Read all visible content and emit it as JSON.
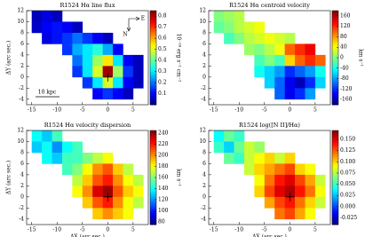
{
  "chart_data": [
    {
      "type": "heatmap",
      "title": "R1524 Hα line flux",
      "colormap": "jet",
      "ylabel": "ΔY (arc sec.)",
      "colorbar_label": "10⁻¹⁶ erg s⁻¹ cm⁻²",
      "x_centers": [
        -14,
        -12,
        -10,
        -8,
        -6,
        -4,
        -2,
        0,
        2,
        4,
        6
      ],
      "y_centers": [
        11,
        9,
        7,
        5,
        3,
        1,
        -1,
        -3
      ],
      "values": [
        [
          0.05,
          0.08,
          0.05,
          null,
          null,
          null,
          null,
          null,
          null,
          null,
          null
        ],
        [
          0.06,
          0.1,
          0.12,
          0.1,
          0.05,
          null,
          null,
          null,
          null,
          null,
          null
        ],
        [
          null,
          0.08,
          0.12,
          0.15,
          0.2,
          0.15,
          0.1,
          0.05,
          null,
          null,
          null
        ],
        [
          null,
          null,
          null,
          0.15,
          0.25,
          0.3,
          0.35,
          0.25,
          0.1,
          null,
          null
        ],
        [
          null,
          null,
          null,
          null,
          0.2,
          0.3,
          0.45,
          0.55,
          0.3,
          0.1,
          0.05
        ],
        [
          null,
          null,
          null,
          null,
          0.15,
          0.3,
          0.5,
          0.82,
          0.45,
          0.15,
          0.05
        ],
        [
          null,
          null,
          null,
          null,
          null,
          0.15,
          0.3,
          0.5,
          0.3,
          0.1,
          0.05
        ],
        [
          null,
          null,
          null,
          null,
          null,
          null,
          0.1,
          0.15,
          0.1,
          0.05,
          null
        ]
      ],
      "clim": [
        0,
        0.85
      ],
      "cticks": [
        0.1,
        0.2,
        0.3,
        0.4,
        0.5,
        0.6,
        0.7,
        0.8
      ],
      "xlim": [
        -16,
        8
      ],
      "ylim": [
        -5,
        12
      ],
      "xticks": [
        -15,
        -10,
        -5,
        0,
        5
      ],
      "yticks": [
        -4,
        -2,
        0,
        2,
        4,
        6,
        8,
        10,
        12
      ],
      "center_marker": {
        "x": 0,
        "y": 0
      },
      "scale_bar": "10 kpc",
      "compass": [
        "N",
        "E"
      ]
    },
    {
      "type": "heatmap",
      "title": "R1524 Hα centroid velocity",
      "colormap": "jet",
      "colorbar_label": "km s⁻¹",
      "x_centers": [
        -14,
        -12,
        -10,
        -8,
        -6,
        -4,
        -2,
        0,
        2,
        4,
        6
      ],
      "y_centers": [
        11,
        9,
        7,
        5,
        3,
        1,
        -1,
        -3
      ],
      "values": [
        [
          0,
          10,
          20,
          null,
          null,
          null,
          null,
          null,
          null,
          null,
          null
        ],
        [
          -10,
          0,
          20,
          30,
          40,
          null,
          null,
          null,
          null,
          null,
          null
        ],
        [
          null,
          -20,
          0,
          20,
          30,
          40,
          30,
          20,
          null,
          null,
          null
        ],
        [
          null,
          null,
          null,
          10,
          0,
          20,
          40,
          100,
          120,
          140,
          null
        ],
        [
          null,
          null,
          null,
          null,
          -20,
          0,
          -20,
          60,
          100,
          120,
          100
        ],
        [
          null,
          null,
          null,
          null,
          -40,
          -60,
          -80,
          -120,
          -100,
          -80,
          -40
        ],
        [
          null,
          null,
          null,
          null,
          null,
          -60,
          -100,
          -140,
          -160,
          -120,
          -60
        ],
        [
          null,
          null,
          null,
          null,
          null,
          null,
          -100,
          -140,
          -120,
          -80,
          null
        ]
      ],
      "clim": [
        -180,
        180
      ],
      "cticks": [
        -160,
        -120,
        -80,
        -40,
        0,
        40,
        80,
        120,
        160
      ],
      "xlim": [
        -16,
        8
      ],
      "ylim": [
        -5,
        12
      ],
      "xticks": [
        -15,
        -10,
        -5,
        0,
        5
      ],
      "yticks": [
        -4,
        -2,
        0,
        2,
        4,
        6,
        8,
        10,
        12
      ]
    },
    {
      "type": "heatmap",
      "title": "R1524 Hα velocity dispersion",
      "colormap": "jet",
      "xlabel": "ΔX (arc sec.)",
      "ylabel": "ΔY (arc sec.)",
      "colorbar_label": "km s⁻¹",
      "x_centers": [
        -14,
        -12,
        -10,
        -8,
        -6,
        -4,
        -2,
        0,
        2,
        4,
        6
      ],
      "y_centers": [
        11,
        9,
        7,
        5,
        3,
        1,
        -1,
        -3
      ],
      "values": [
        [
          140,
          130,
          150,
          null,
          null,
          null,
          null,
          null,
          null,
          null,
          null
        ],
        [
          130,
          140,
          120,
          140,
          150,
          null,
          null,
          null,
          null,
          null,
          null
        ],
        [
          null,
          140,
          130,
          150,
          150,
          160,
          170,
          180,
          null,
          null,
          null
        ],
        [
          null,
          null,
          null,
          150,
          160,
          180,
          200,
          210,
          190,
          170,
          null
        ],
        [
          null,
          null,
          null,
          null,
          170,
          190,
          210,
          220,
          200,
          180,
          170
        ],
        [
          null,
          null,
          null,
          null,
          180,
          200,
          230,
          240,
          210,
          190,
          180
        ],
        [
          null,
          null,
          null,
          null,
          null,
          190,
          210,
          220,
          200,
          180,
          170
        ],
        [
          null,
          null,
          null,
          null,
          null,
          null,
          190,
          200,
          190,
          180,
          null
        ]
      ],
      "clim": [
        75,
        245
      ],
      "cticks": [
        80,
        100,
        120,
        140,
        160,
        180,
        200,
        220,
        240
      ],
      "xlim": [
        -16,
        8
      ],
      "ylim": [
        -5,
        12
      ],
      "xticks": [
        -15,
        -10,
        -5,
        0,
        5
      ],
      "yticks": [
        -4,
        -2,
        0,
        2,
        4,
        6,
        8,
        10,
        12
      ],
      "center_marker": {
        "x": 0,
        "y": 0
      }
    },
    {
      "type": "heatmap",
      "title": "R1524  log([N II]/Hα)",
      "colormap": "jet",
      "xlabel": "ΔX (arc sec.)",
      "x_centers": [
        -14,
        -12,
        -10,
        -8,
        -6,
        -4,
        -2,
        0,
        2,
        4,
        6
      ],
      "y_centers": [
        11,
        9,
        7,
        5,
        3,
        1,
        -1,
        -3
      ],
      "values": [
        [
          0.04,
          0.06,
          0.05,
          null,
          null,
          null,
          null,
          null,
          null,
          null,
          null
        ],
        [
          0.05,
          0.03,
          0.06,
          0.08,
          0.07,
          null,
          null,
          null,
          null,
          null,
          null
        ],
        [
          null,
          0.06,
          0.05,
          0.08,
          0.09,
          0.1,
          0.08,
          0.1,
          null,
          null,
          null
        ],
        [
          null,
          null,
          null,
          0.08,
          0.1,
          0.11,
          0.12,
          0.13,
          0.1,
          0.09,
          null
        ],
        [
          null,
          null,
          null,
          null,
          0.09,
          0.12,
          0.14,
          0.15,
          0.13,
          0.11,
          0.08
        ],
        [
          null,
          null,
          null,
          null,
          0.1,
          0.13,
          0.15,
          0.16,
          0.14,
          0.12,
          0.09
        ],
        [
          null,
          null,
          null,
          null,
          null,
          0.11,
          0.13,
          0.14,
          0.12,
          0.1,
          0.08
        ],
        [
          null,
          null,
          null,
          null,
          null,
          null,
          0.12,
          0.13,
          0.11,
          0.09,
          null
        ]
      ],
      "clim": [
        -0.04,
        0.17
      ],
      "cticks": [
        {
          "value": -0.025,
          "label": "-0.025"
        },
        {
          "value": 0,
          "label": "0.000"
        },
        {
          "value": 0.025,
          "label": "0.025"
        },
        {
          "value": 0.05,
          "label": "0.050"
        },
        {
          "value": 0.075,
          "label": "0.075"
        },
        {
          "value": 0.1,
          "label": "0.100"
        },
        {
          "value": 0.125,
          "label": "0.125"
        },
        {
          "value": 0.15,
          "label": "0.150"
        }
      ],
      "xlim": [
        -16,
        8
      ],
      "ylim": [
        -5,
        12
      ],
      "xticks": [
        -15,
        -10,
        -5,
        0,
        5
      ],
      "yticks": [
        -4,
        -2,
        0,
        2,
        4,
        6,
        8,
        10,
        12
      ],
      "center_marker": {
        "x": 0,
        "y": 0
      }
    }
  ]
}
